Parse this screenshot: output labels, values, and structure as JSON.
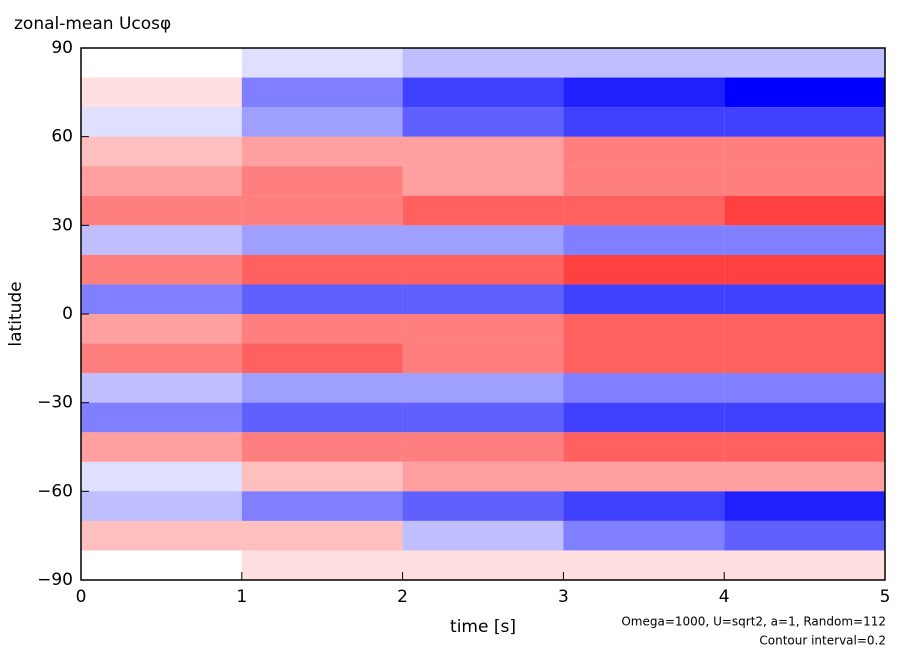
{
  "chart_data": {
    "type": "heatmap",
    "title": "zonal-mean Ucosφ",
    "x_label": "time [s]",
    "y_label": "latitude",
    "notes": [
      "Omega=1000, U=sqrt2, a=1, Random=112",
      "Contour interval=0.2"
    ],
    "xbins": [
      0,
      1,
      2,
      3,
      4,
      5
    ],
    "ybins": [
      -90,
      -80,
      -70,
      -60,
      -50,
      -40,
      -30,
      -20,
      -10,
      0,
      10,
      20,
      30,
      40,
      50,
      60,
      70,
      80,
      90
    ],
    "z": [
      [
        0.0,
        0.2,
        0.2,
        0.2,
        0.2
      ],
      [
        0.4,
        0.4,
        -0.4,
        -0.8,
        -1.0
      ],
      [
        -0.4,
        -0.8,
        -1.0,
        -1.2,
        -1.4
      ],
      [
        -0.2,
        0.4,
        0.6,
        0.6,
        0.6
      ],
      [
        0.6,
        0.8,
        0.8,
        1.0,
        1.0
      ],
      [
        -0.8,
        -1.0,
        -1.0,
        -1.2,
        -1.2
      ],
      [
        -0.4,
        -0.6,
        -0.6,
        -0.8,
        -0.8
      ],
      [
        0.8,
        1.0,
        0.8,
        1.0,
        1.0
      ],
      [
        0.6,
        0.8,
        0.8,
        1.0,
        1.0
      ],
      [
        -0.8,
        -1.0,
        -1.0,
        -1.2,
        -1.2
      ],
      [
        0.8,
        1.0,
        1.0,
        1.2,
        1.2
      ],
      [
        -0.4,
        -0.6,
        -0.6,
        -0.8,
        -0.8
      ],
      [
        0.8,
        0.8,
        1.0,
        1.0,
        1.2
      ],
      [
        0.6,
        0.8,
        0.6,
        0.8,
        0.8
      ],
      [
        0.4,
        0.6,
        0.6,
        0.8,
        0.8
      ],
      [
        -0.2,
        -0.6,
        -1.0,
        -1.2,
        -1.2
      ],
      [
        0.2,
        -0.8,
        -1.2,
        -1.4,
        -1.6
      ],
      [
        0.0,
        -0.2,
        -0.4,
        -0.4,
        -0.4
      ]
    ],
    "colors": {
      "negative": "#0000ff",
      "positive": "#ff0000"
    },
    "xlim": [
      0,
      5
    ],
    "xticks": [
      0,
      1,
      2,
      3,
      4,
      5
    ],
    "ylim": [
      -90,
      90
    ],
    "yticks": [
      {
        "value": -90,
        "label": "−90"
      },
      {
        "value": -60,
        "label": "−60"
      },
      {
        "value": -30,
        "label": "−30"
      },
      0,
      30,
      60,
      90
    ]
  }
}
